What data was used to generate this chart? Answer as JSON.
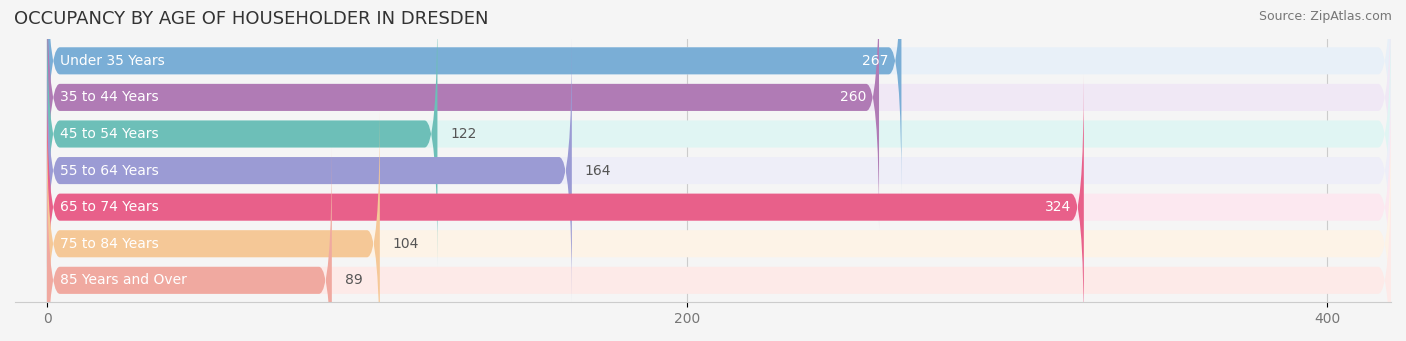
{
  "title": "OCCUPANCY BY AGE OF HOUSEHOLDER IN DRESDEN",
  "source": "Source: ZipAtlas.com",
  "categories": [
    "Under 35 Years",
    "35 to 44 Years",
    "45 to 54 Years",
    "55 to 64 Years",
    "65 to 74 Years",
    "75 to 84 Years",
    "85 Years and Over"
  ],
  "values": [
    267,
    260,
    122,
    164,
    324,
    104,
    89
  ],
  "bar_colors": [
    "#7aaed6",
    "#b07bb5",
    "#6dbfb8",
    "#9b9bd4",
    "#e8608a",
    "#f5c897",
    "#f0a9a0"
  ],
  "bar_bg_colors": [
    "#e8f0f8",
    "#f0e8f5",
    "#e0f5f3",
    "#eeeef8",
    "#fce8f0",
    "#fdf3e7",
    "#fdeae8"
  ],
  "xlim": [
    -10,
    420
  ],
  "xticks": [
    0,
    200,
    400
  ],
  "value_label_color_inside": [
    "white",
    "white",
    "black",
    "black",
    "white",
    "black",
    "black"
  ],
  "background_color": "#f5f5f5",
  "title_fontsize": 13,
  "source_fontsize": 9,
  "bar_label_fontsize": 10,
  "tick_fontsize": 10
}
